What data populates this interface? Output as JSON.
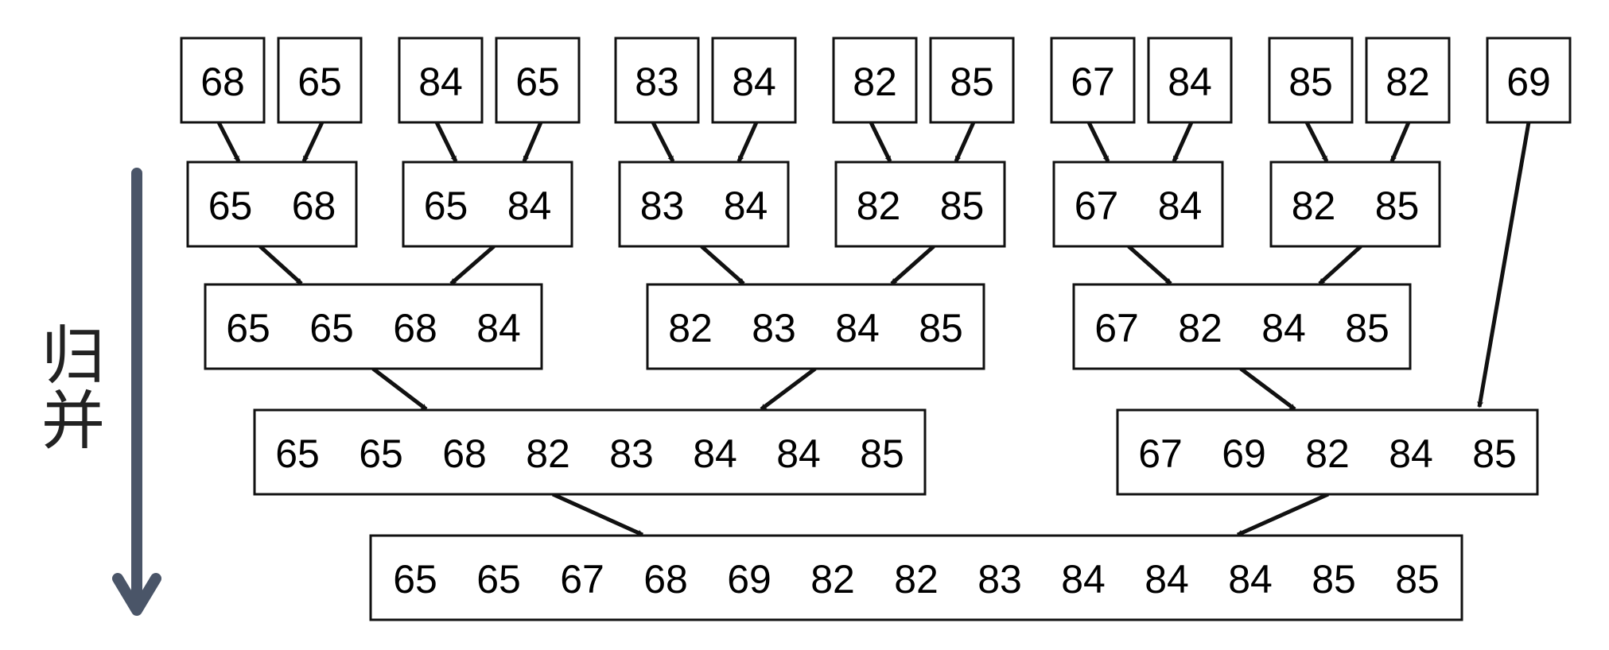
{
  "side_label": {
    "chars": [
      "归",
      "并"
    ]
  },
  "levels": [
    {
      "name": "level-0",
      "boxes": [
        [
          "68"
        ],
        [
          "65"
        ],
        [
          "84"
        ],
        [
          "65"
        ],
        [
          "83"
        ],
        [
          "84"
        ],
        [
          "82"
        ],
        [
          "85"
        ],
        [
          "67"
        ],
        [
          "84"
        ],
        [
          "85"
        ],
        [
          "82"
        ],
        [
          "69"
        ]
      ]
    },
    {
      "name": "level-1",
      "boxes": [
        [
          "65",
          "68"
        ],
        [
          "65",
          "84"
        ],
        [
          "83",
          "84"
        ],
        [
          "82",
          "85"
        ],
        [
          "67",
          "84"
        ],
        [
          "82",
          "85"
        ]
      ]
    },
    {
      "name": "level-2",
      "boxes": [
        [
          "65",
          "65",
          "68",
          "84"
        ],
        [
          "82",
          "83",
          "84",
          "85"
        ],
        [
          "67",
          "82",
          "84",
          "85"
        ]
      ]
    },
    {
      "name": "level-3",
      "boxes": [
        [
          "65",
          "65",
          "68",
          "82",
          "83",
          "84",
          "84",
          "85"
        ],
        [
          "67",
          "69",
          "82",
          "84",
          "85"
        ]
      ]
    },
    {
      "name": "level-4",
      "boxes": [
        [
          "65",
          "65",
          "67",
          "68",
          "69",
          "82",
          "82",
          "83",
          "84",
          "84",
          "84",
          "85",
          "85"
        ]
      ]
    }
  ],
  "colors": {
    "direction_arrow": "#4a5568",
    "box_border": "#111111",
    "text": "#000000",
    "label": "#222222"
  }
}
